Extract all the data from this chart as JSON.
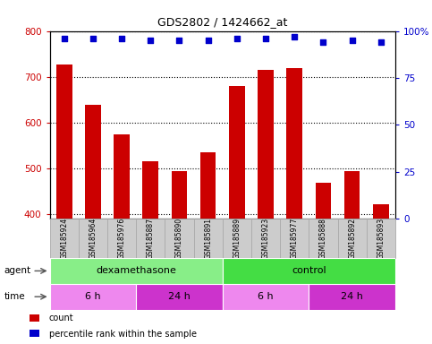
{
  "title": "GDS2802 / 1424662_at",
  "samples": [
    "GSM185924",
    "GSM185964",
    "GSM185976",
    "GSM185887",
    "GSM185890",
    "GSM185891",
    "GSM185889",
    "GSM185923",
    "GSM185977",
    "GSM185888",
    "GSM185892",
    "GSM185893"
  ],
  "counts": [
    727,
    638,
    573,
    515,
    493,
    535,
    680,
    715,
    719,
    468,
    493,
    422
  ],
  "percentile_ranks": [
    96,
    96,
    96,
    95,
    95,
    95,
    96,
    96,
    97,
    94,
    95,
    94
  ],
  "ylim_left": [
    390,
    800
  ],
  "ylim_right": [
    0,
    100
  ],
  "yticks_left": [
    400,
    500,
    600,
    700,
    800
  ],
  "yticks_right": [
    0,
    25,
    50,
    75,
    100
  ],
  "bar_color": "#cc0000",
  "dot_color": "#0000cc",
  "bar_bottom": 390,
  "agent_groups": [
    {
      "label": "dexamethasone",
      "start": 0,
      "end": 6,
      "color": "#88ee88"
    },
    {
      "label": "control",
      "start": 6,
      "end": 12,
      "color": "#44dd44"
    }
  ],
  "time_groups": [
    {
      "label": "6 h",
      "start": 0,
      "end": 3,
      "color": "#ee88ee"
    },
    {
      "label": "24 h",
      "start": 3,
      "end": 6,
      "color": "#cc33cc"
    },
    {
      "label": "6 h",
      "start": 6,
      "end": 9,
      "color": "#ee88ee"
    },
    {
      "label": "24 h",
      "start": 9,
      "end": 12,
      "color": "#cc33cc"
    }
  ],
  "legend_items": [
    {
      "color": "#cc0000",
      "label": "count"
    },
    {
      "color": "#0000cc",
      "label": "percentile rank within the sample"
    }
  ],
  "tick_label_color_left": "#cc0000",
  "tick_label_color_right": "#0000cc",
  "background_plot": "#ffffff",
  "background_xticklabel": "#cccccc",
  "cell_border_color": "#aaaaaa",
  "figure_bg": "#ffffff"
}
